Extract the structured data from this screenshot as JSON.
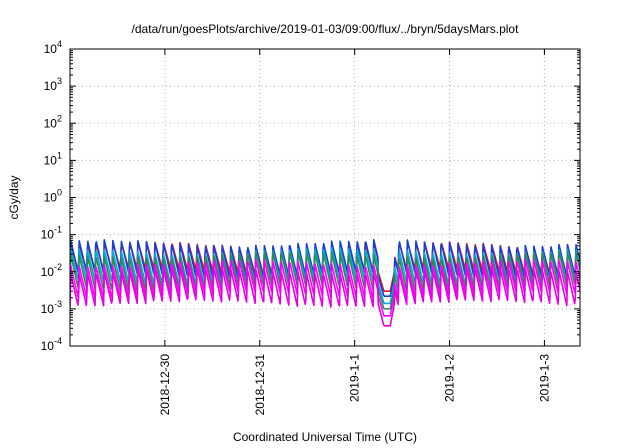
{
  "chart_data": {
    "type": "line",
    "title": "/data/run/goesPlots/archive/2019-01-03/09:00/flux/../bryn/5daysMars.plot",
    "xlabel": "Coordinated Universal Time (UTC)",
    "ylabel": "cGy/day",
    "xlim": [
      "2018-12-29T00:00",
      "2019-01-03T09:00"
    ],
    "ylim": [
      0.0001,
      10000
    ],
    "yscale": "log",
    "grid": true,
    "legend": "none",
    "x_ticks": [
      {
        "date": "2018-12-30T00:00",
        "label": "2018-12-30"
      },
      {
        "date": "2018-12-31T00:00",
        "label": "2018-12-31"
      },
      {
        "date": "2019-01-01T00:00",
        "label": "2019-1-1"
      },
      {
        "date": "2019-01-02T00:00",
        "label": "2019-1-2"
      },
      {
        "date": "2019-01-03T00:00",
        "label": "2019-1-3"
      }
    ],
    "y_ticks": [
      {
        "value": 0.0001,
        "base": "10",
        "exp": "-4"
      },
      {
        "value": 0.001,
        "base": "10",
        "exp": "-3"
      },
      {
        "value": 0.01,
        "base": "10",
        "exp": "-2"
      },
      {
        "value": 0.1,
        "base": "10",
        "exp": "-1"
      },
      {
        "value": 1,
        "base": "10",
        "exp": "0"
      },
      {
        "value": 10,
        "base": "10",
        "exp": "1"
      },
      {
        "value": 100,
        "base": "10",
        "exp": "2"
      },
      {
        "value": 1000,
        "base": "10",
        "exp": "3"
      },
      {
        "value": 10000,
        "base": "10",
        "exp": "4"
      }
    ],
    "cycle_hours": 2.13,
    "cycle_start": "2018-12-29T00:00",
    "gap": [
      "2019-01-01T06:00",
      "2019-01-01T10:00"
    ],
    "series": [
      {
        "color": "#e8141c",
        "peak": 0.055,
        "trough": 0.0095,
        "gap_min": 0.003
      },
      {
        "color": "#1a3fd6",
        "peak": 0.062,
        "trough": 0.0075,
        "gap_min": 0.0022
      },
      {
        "color": "#00b0d0",
        "peak": 0.038,
        "trough": 0.0048,
        "gap_min": 0.0014
      },
      {
        "color": "#2e8b57",
        "peak": 0.03,
        "trough": 0.0034,
        "gap_min": 0.001
      },
      {
        "color": "#ff00ff",
        "peak": 0.018,
        "trough": 0.0022,
        "gap_min": 0.00065
      },
      {
        "color": "#e600e6",
        "peak": 0.011,
        "trough": 0.0013,
        "gap_min": 0.00035
      }
    ]
  }
}
